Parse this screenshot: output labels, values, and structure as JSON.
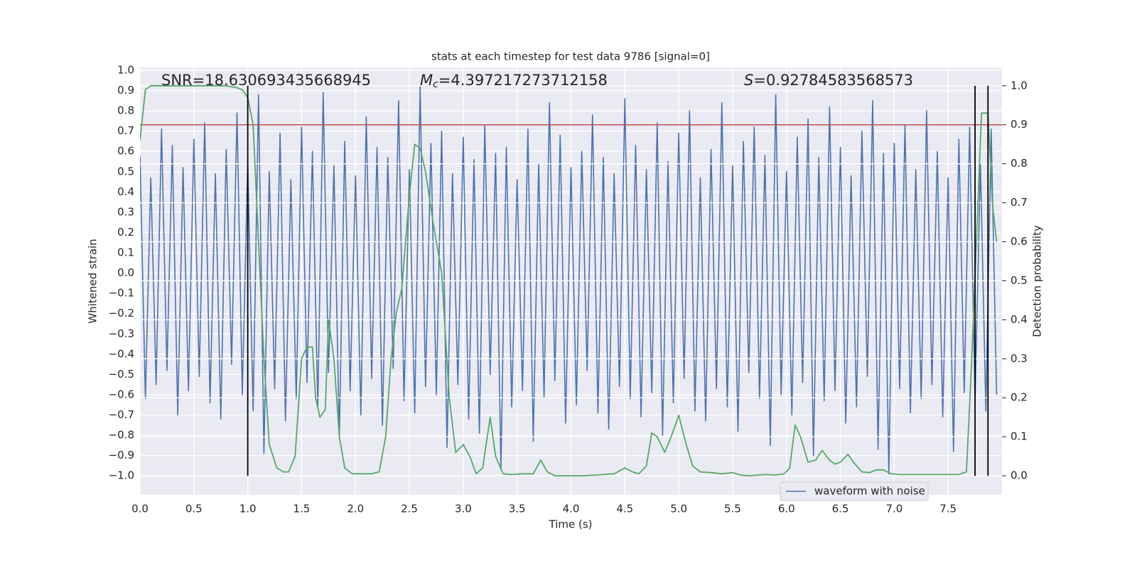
{
  "chart_data": {
    "type": "line",
    "title": "stats at each timestep for test data 9786 [signal=0]",
    "xlabel": "Time (s)",
    "ylabel": "Whitened strain",
    "y2label": "Detection probability",
    "annotations": [
      {
        "text": "SNR=18.630693435668945"
      },
      {
        "symbol": "M",
        "sub": "c",
        "text": "=4.397217273712158"
      },
      {
        "symbol": "S",
        "text": "=0.92784583568573"
      }
    ],
    "xlim": [
      0,
      8
    ],
    "xticks": [
      {
        "value": 0,
        "label": "0.0"
      },
      0.5,
      {
        "value": 1,
        "label": "1.0"
      },
      1.5,
      {
        "value": 2,
        "label": "2.0"
      },
      2.5,
      {
        "value": 3,
        "label": "3.0"
      },
      3.5,
      {
        "value": 4,
        "label": "4.0"
      },
      4.5,
      {
        "value": 5,
        "label": "5.0"
      },
      5.5,
      {
        "value": 6,
        "label": "6.0"
      },
      6.5,
      {
        "value": 7,
        "label": "7.0"
      },
      7.5
    ],
    "ylim": [
      -1.094,
      1.014
    ],
    "yticks": [
      {
        "value": -1,
        "label": "−1.0"
      },
      {
        "value": -0.9,
        "label": "−0.9"
      },
      {
        "value": -0.8,
        "label": "−0.8"
      },
      {
        "value": -0.7,
        "label": "−0.7"
      },
      {
        "value": -0.6,
        "label": "−0.6"
      },
      {
        "value": -0.5,
        "label": "−0.5"
      },
      {
        "value": -0.4,
        "label": "−0.4"
      },
      {
        "value": -0.3,
        "label": "−0.3"
      },
      {
        "value": -0.2,
        "label": "−0.2"
      },
      {
        "value": -0.1,
        "label": "−0.1"
      },
      {
        "value": 0,
        "label": "0.0"
      },
      0.1,
      0.2,
      0.3,
      0.4,
      0.5,
      0.6,
      0.7,
      0.8,
      0.9,
      {
        "value": 1,
        "label": "1.0"
      }
    ],
    "y2lim": [
      -0.049,
      1.047
    ],
    "y2ticks": [
      {
        "value": 0,
        "label": "0.0"
      },
      0.1,
      0.2,
      0.3,
      0.4,
      0.5,
      0.6,
      0.7,
      0.8,
      0.9,
      {
        "value": 1,
        "label": "1.0"
      }
    ],
    "grid": true,
    "legend": "lower right",
    "series": [
      {
        "name": "waveform with noise",
        "color": "#4c72b0",
        "x": [
          0,
          0.05,
          0.1,
          0.15,
          0.2,
          0.25,
          0.3,
          0.35,
          0.4,
          0.45,
          0.5,
          0.55,
          0.6,
          0.65,
          0.7,
          0.75,
          0.8,
          0.85,
          0.9,
          0.95,
          1,
          1.05,
          1.1,
          1.15,
          1.2,
          1.25,
          1.3,
          1.35,
          1.4,
          1.45,
          1.5,
          1.55,
          1.6,
          1.65,
          1.7,
          1.75,
          1.8,
          1.85,
          1.9,
          1.95,
          2,
          2.05,
          2.1,
          2.15,
          2.2,
          2.25,
          2.3,
          2.35,
          2.4,
          2.45,
          2.5,
          2.55,
          2.6,
          2.65,
          2.7,
          2.75,
          2.8,
          2.85,
          2.9,
          2.95,
          3,
          3.05,
          3.1,
          3.15,
          3.2,
          3.25,
          3.3,
          3.35,
          3.4,
          3.45,
          3.5,
          3.55,
          3.6,
          3.65,
          3.7,
          3.75,
          3.8,
          3.85,
          3.9,
          3.95,
          4,
          4.05,
          4.1,
          4.15,
          4.2,
          4.25,
          4.3,
          4.35,
          4.4,
          4.45,
          4.5,
          4.55,
          4.6,
          4.65,
          4.7,
          4.75,
          4.8,
          4.85,
          4.9,
          4.95,
          5,
          5.05,
          5.1,
          5.15,
          5.2,
          5.25,
          5.3,
          5.35,
          5.4,
          5.45,
          5.5,
          5.55,
          5.6,
          5.65,
          5.7,
          5.75,
          5.8,
          5.85,
          5.9,
          5.95,
          6,
          6.05,
          6.1,
          6.15,
          6.2,
          6.25,
          6.3,
          6.35,
          6.4,
          6.45,
          6.5,
          6.55,
          6.6,
          6.65,
          6.7,
          6.75,
          6.8,
          6.85,
          6.9,
          6.95,
          7,
          7.05,
          7.1,
          7.15,
          7.2,
          7.25,
          7.3,
          7.35,
          7.4,
          7.45,
          7.5,
          7.55,
          7.6,
          7.65,
          7.7,
          7.75,
          7.8,
          7.85,
          7.9,
          7.95
        ],
        "values": [
          0.58,
          -0.62,
          0.47,
          -0.55,
          0.71,
          -0.48,
          0.63,
          -0.7,
          0.52,
          -0.58,
          0.66,
          -0.51,
          0.74,
          -0.64,
          0.49,
          -0.72,
          0.61,
          -0.45,
          0.79,
          -0.6,
          0.55,
          -0.68,
          0.88,
          -0.89,
          0.5,
          -0.57,
          0.69,
          -0.73,
          0.46,
          -0.62,
          0.72,
          -0.54,
          0.6,
          -0.66,
          0.89,
          -0.49,
          0.53,
          -0.81,
          0.65,
          -0.58,
          0.48,
          -0.7,
          0.77,
          -0.52,
          0.62,
          -0.75,
          0.57,
          -0.47,
          0.85,
          -0.63,
          0.51,
          -0.69,
          0.92,
          -0.56,
          0.64,
          -0.6,
          0.7,
          -0.86,
          0.49,
          -0.55,
          0.67,
          -0.72,
          0.56,
          -0.79,
          0.73,
          -0.5,
          0.59,
          -0.97,
          0.62,
          -0.66,
          0.46,
          -0.58,
          0.71,
          -0.83,
          0.54,
          -0.61,
          0.84,
          -0.53,
          0.68,
          -0.74,
          0.52,
          -0.65,
          0.6,
          -0.48,
          0.78,
          -0.69,
          0.57,
          -0.77,
          0.49,
          -0.56,
          0.86,
          -0.62,
          0.63,
          -0.71,
          0.51,
          -0.59,
          0.74,
          -0.8,
          0.55,
          -0.64,
          0.69,
          -0.52,
          0.8,
          -0.68,
          0.47,
          -0.73,
          0.61,
          -0.57,
          0.84,
          -0.66,
          0.53,
          -0.78,
          0.65,
          -0.49,
          0.72,
          -0.62,
          0.58,
          -0.85,
          0.88,
          -0.6,
          0.5,
          -0.7,
          0.67,
          -0.54,
          0.76,
          -0.9,
          0.57,
          -0.63,
          0.82,
          -0.58,
          0.62,
          -0.74,
          0.48,
          -0.66,
          0.7,
          -0.51,
          0.85,
          -0.87,
          0.59,
          -0.99,
          0.64,
          -0.57,
          0.73,
          -0.69,
          0.51,
          -0.62,
          0.8,
          -0.55,
          0.6,
          -0.71,
          0.47,
          -0.88,
          0.66,
          -0.59,
          0.72,
          -0.63,
          0.54,
          -0.68,
          0.71,
          -0.6
        ]
      }
    ],
    "probability": {
      "color": "#55a868",
      "axis": "y2",
      "x": [
        0,
        0.05,
        0.1,
        0.2,
        0.3,
        0.4,
        0.5,
        0.6,
        0.7,
        0.8,
        0.9,
        0.95,
        1.0,
        1.05,
        1.1,
        1.15,
        1.2,
        1.27,
        1.33,
        1.38,
        1.44,
        1.5,
        1.55,
        1.6,
        1.63,
        1.67,
        1.72,
        1.75,
        1.8,
        1.85,
        1.9,
        1.97,
        2.05,
        2.15,
        2.22,
        2.28,
        2.33,
        2.38,
        2.43,
        2.5,
        2.55,
        2.6,
        2.65,
        2.72,
        2.8,
        2.87,
        2.93,
        3.0,
        3.06,
        3.12,
        3.18,
        3.25,
        3.3,
        3.37,
        3.45,
        3.55,
        3.65,
        3.72,
        3.78,
        3.85,
        3.95,
        4.1,
        4.25,
        4.4,
        4.5,
        4.57,
        4.63,
        4.7,
        4.75,
        4.8,
        4.87,
        4.93,
        5.0,
        5.07,
        5.13,
        5.2,
        5.3,
        5.4,
        5.5,
        5.57,
        5.65,
        5.8,
        5.9,
        5.98,
        6.03,
        6.08,
        6.13,
        6.2,
        6.27,
        6.33,
        6.4,
        6.45,
        6.5,
        6.57,
        6.62,
        6.7,
        6.77,
        6.83,
        6.9,
        6.97,
        7.05,
        7.15,
        7.3,
        7.45,
        7.6,
        7.67,
        7.72,
        7.77,
        7.81,
        7.87,
        7.91,
        7.95
      ],
      "values": [
        0.86,
        0.99,
        1.0,
        1.0,
        1.0,
        1.0,
        1.0,
        1.0,
        1.0,
        1.0,
        0.995,
        0.99,
        0.97,
        0.9,
        0.6,
        0.3,
        0.08,
        0.02,
        0.01,
        0.01,
        0.05,
        0.3,
        0.33,
        0.33,
        0.2,
        0.15,
        0.17,
        0.4,
        0.3,
        0.1,
        0.02,
        0.005,
        0.005,
        0.005,
        0.01,
        0.1,
        0.3,
        0.42,
        0.48,
        0.72,
        0.85,
        0.84,
        0.78,
        0.65,
        0.52,
        0.2,
        0.06,
        0.08,
        0.05,
        0.005,
        0.02,
        0.15,
        0.05,
        0.005,
        0.003,
        0.005,
        0.005,
        0.04,
        0.01,
        0,
        0,
        0,
        0.002,
        0.005,
        0.02,
        0.01,
        0.005,
        0.025,
        0.11,
        0.1,
        0.06,
        0.1,
        0.155,
        0.08,
        0.025,
        0.01,
        0.008,
        0.005,
        0.008,
        0.002,
        0,
        0.003,
        0.002,
        0.005,
        0.02,
        0.13,
        0.1,
        0.035,
        0.04,
        0.065,
        0.04,
        0.03,
        0.035,
        0.055,
        0.035,
        0.01,
        0.008,
        0.015,
        0.015,
        0.005,
        0.003,
        0.003,
        0.003,
        0.003,
        0.003,
        0.01,
        0.3,
        0.65,
        0.93,
        0.93,
        0.7,
        0.6
      ]
    },
    "threshold": 0.9,
    "threshold_color": "#c44e52",
    "vlines": [
      1.0,
      7.75,
      7.87
    ],
    "vline_span": [
      0,
      1
    ],
    "vline_color": "#000000"
  }
}
